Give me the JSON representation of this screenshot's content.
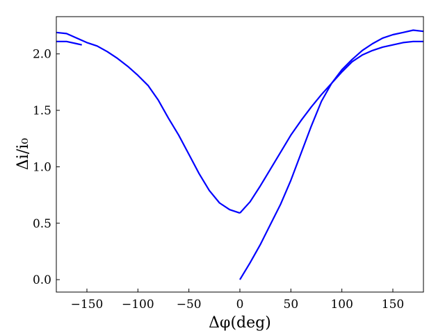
{
  "chart_data": {
    "type": "line",
    "xlabel": "Δφ(deg)",
    "ylabel": "Δi/i₀",
    "xlim": [
      -180,
      180
    ],
    "ylim": [
      -0.11,
      2.33
    ],
    "grid": false,
    "x_ticks": [
      -150,
      -100,
      -50,
      0,
      50,
      100,
      150
    ],
    "x_tick_labels": [
      "−150",
      "−100",
      "−50",
      "0",
      "50",
      "100",
      "150"
    ],
    "y_ticks": [
      0.0,
      0.5,
      1.0,
      1.5,
      2.0
    ],
    "y_tick_labels": [
      "0.0",
      "0.5",
      "1.0",
      "1.5",
      "2.0"
    ],
    "color": "#0000ff",
    "series": [
      {
        "x": [
          0,
          10,
          20,
          30,
          40,
          50,
          60,
          70,
          80,
          90,
          100,
          110,
          120,
          130,
          140,
          150,
          160,
          170,
          180
        ],
        "y": [
          0.0,
          0.15,
          0.31,
          0.49,
          0.67,
          0.88,
          1.12,
          1.36,
          1.58,
          1.74,
          1.86,
          1.95,
          2.03,
          2.09,
          2.14,
          2.17,
          2.19,
          2.21,
          2.2
        ]
      },
      {
        "x": [
          180,
          170,
          160,
          150,
          140,
          130,
          120,
          110,
          100,
          90,
          80,
          70,
          60,
          50,
          40,
          30,
          20,
          10,
          0
        ],
        "y": [
          2.11,
          2.11,
          2.1,
          2.08,
          2.06,
          2.03,
          1.99,
          1.93,
          1.84,
          1.74,
          1.64,
          1.53,
          1.41,
          1.28,
          1.13,
          0.98,
          0.83,
          0.69,
          0.59
        ]
      },
      {
        "x": [
          0,
          -10,
          -20,
          -30,
          -40,
          -50,
          -60,
          -70,
          -80,
          -90,
          -100,
          -110,
          -120,
          -130,
          -140,
          -150,
          -160,
          -170,
          -180
        ],
        "y": [
          0.59,
          0.62,
          0.68,
          0.79,
          0.94,
          1.11,
          1.28,
          1.43,
          1.59,
          1.72,
          1.81,
          1.89,
          1.96,
          2.02,
          2.07,
          2.1,
          2.14,
          2.18,
          2.19
        ]
      },
      {
        "x": [
          -180,
          -170,
          -160,
          -155
        ],
        "y": [
          2.11,
          2.11,
          2.09,
          2.08
        ]
      }
    ]
  }
}
